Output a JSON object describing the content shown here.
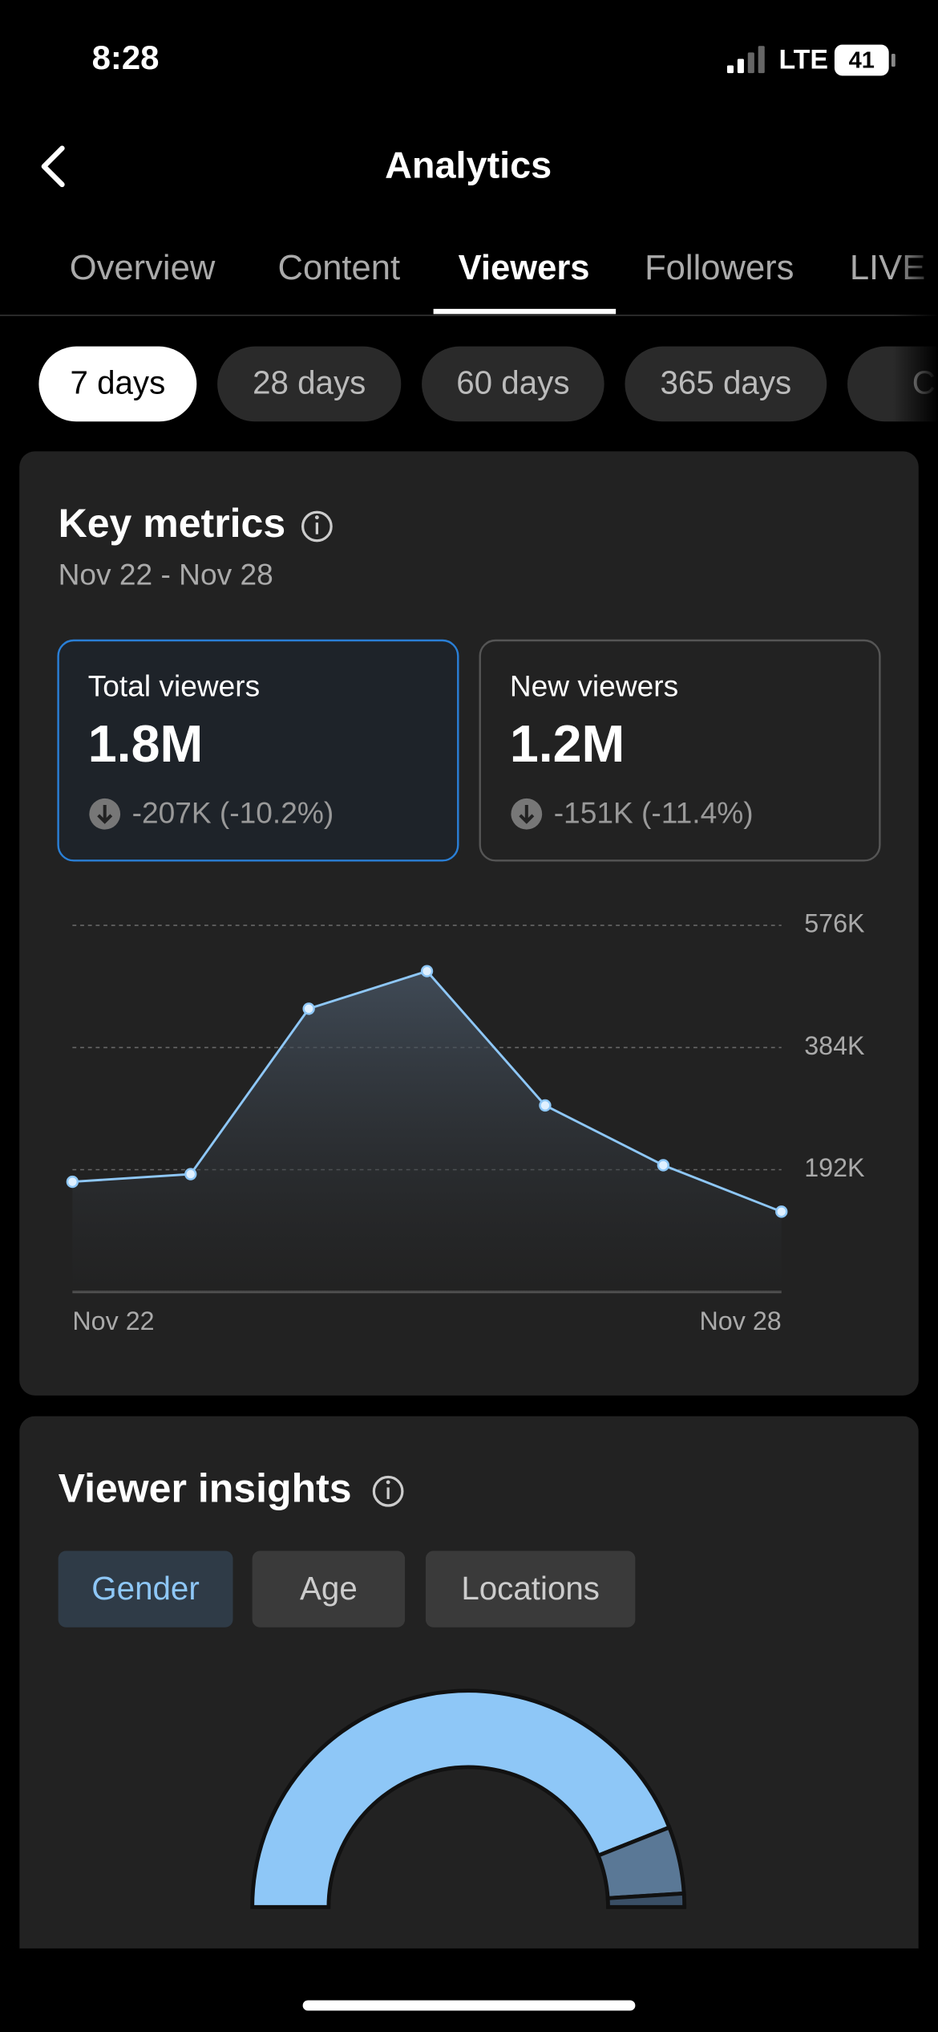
{
  "status_bar": {
    "time": "8:28",
    "network": "LTE",
    "battery": "41"
  },
  "header": {
    "title": "Analytics"
  },
  "tabs": [
    "Overview",
    "Content",
    "Viewers",
    "Followers",
    "LIVE"
  ],
  "active_tab": 2,
  "periods": [
    "7 days",
    "28 days",
    "60 days",
    "365 days",
    "Cu"
  ],
  "active_period": 0,
  "key_metrics": {
    "title": "Key metrics",
    "date_range": "Nov 22 - Nov 28",
    "cards": [
      {
        "label": "Total viewers",
        "value": "1.8M",
        "change": "-207K (-10.2%)"
      },
      {
        "label": "New viewers",
        "value": "1.2M",
        "change": "-151K (-11.4%)"
      }
    ]
  },
  "chart_data": [
    {
      "type": "area",
      "categories": [
        "Nov 22",
        null,
        null,
        null,
        null,
        null,
        "Nov 28"
      ],
      "values": [
        173000,
        185000,
        445000,
        504000,
        293000,
        199000,
        126000
      ],
      "color": "#8ec7f7",
      "ylim": [
        0,
        576000
      ],
      "yticks": [
        {
          "value": 192000,
          "label": "192K"
        },
        {
          "value": 384000,
          "label": "384K"
        },
        {
          "value": 576000,
          "label": "576K"
        }
      ],
      "grid": true
    },
    {
      "type": "semi-donut",
      "values": [
        88,
        10,
        2
      ],
      "colors": [
        "#8ec7f7",
        "#5a7896",
        "#3a4f66"
      ]
    }
  ],
  "viewer_insights": {
    "title": "Viewer insights",
    "filters": [
      "Gender",
      "Age",
      "Locations"
    ],
    "active_filter": 0
  }
}
